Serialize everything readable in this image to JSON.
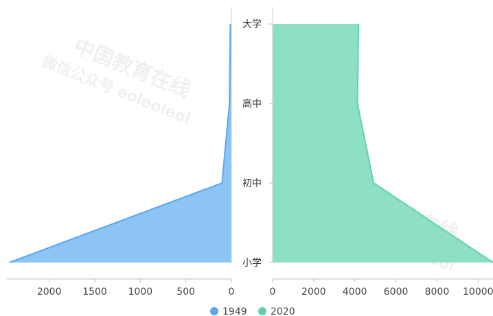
{
  "watermark": {
    "line1": "中国教育在线",
    "line2": "微信公众号 eoleoleol"
  },
  "chart_data": [
    {
      "type": "area",
      "orientation": "horizontal-mirrored",
      "categories": [
        "小学",
        "初中",
        "高中",
        "大学"
      ],
      "series": [
        {
          "name": "1949",
          "values": [
            2439,
            103,
            21,
            12
          ],
          "color": "#8cc4f5",
          "stroke": "#5aa7ee"
        }
      ],
      "xlim": [
        2450,
        0
      ],
      "xticks": [
        2000,
        1500,
        1000,
        500,
        0
      ]
    },
    {
      "type": "area",
      "orientation": "horizontal",
      "categories": [
        "小学",
        "初中",
        "高中",
        "大学"
      ],
      "series": [
        {
          "name": "2020",
          "values": [
            10725,
            4914,
            4128,
            4183
          ],
          "color": "#8de1c2",
          "stroke": "#5fd3a8"
        }
      ],
      "xlim": [
        0,
        10725
      ],
      "xticks": [
        0,
        2000,
        4000,
        6000,
        8000,
        10000
      ]
    }
  ],
  "legend": [
    {
      "label": "1949",
      "color": "#5aa7ee"
    },
    {
      "label": "2020",
      "color": "#5fd3a8"
    }
  ]
}
